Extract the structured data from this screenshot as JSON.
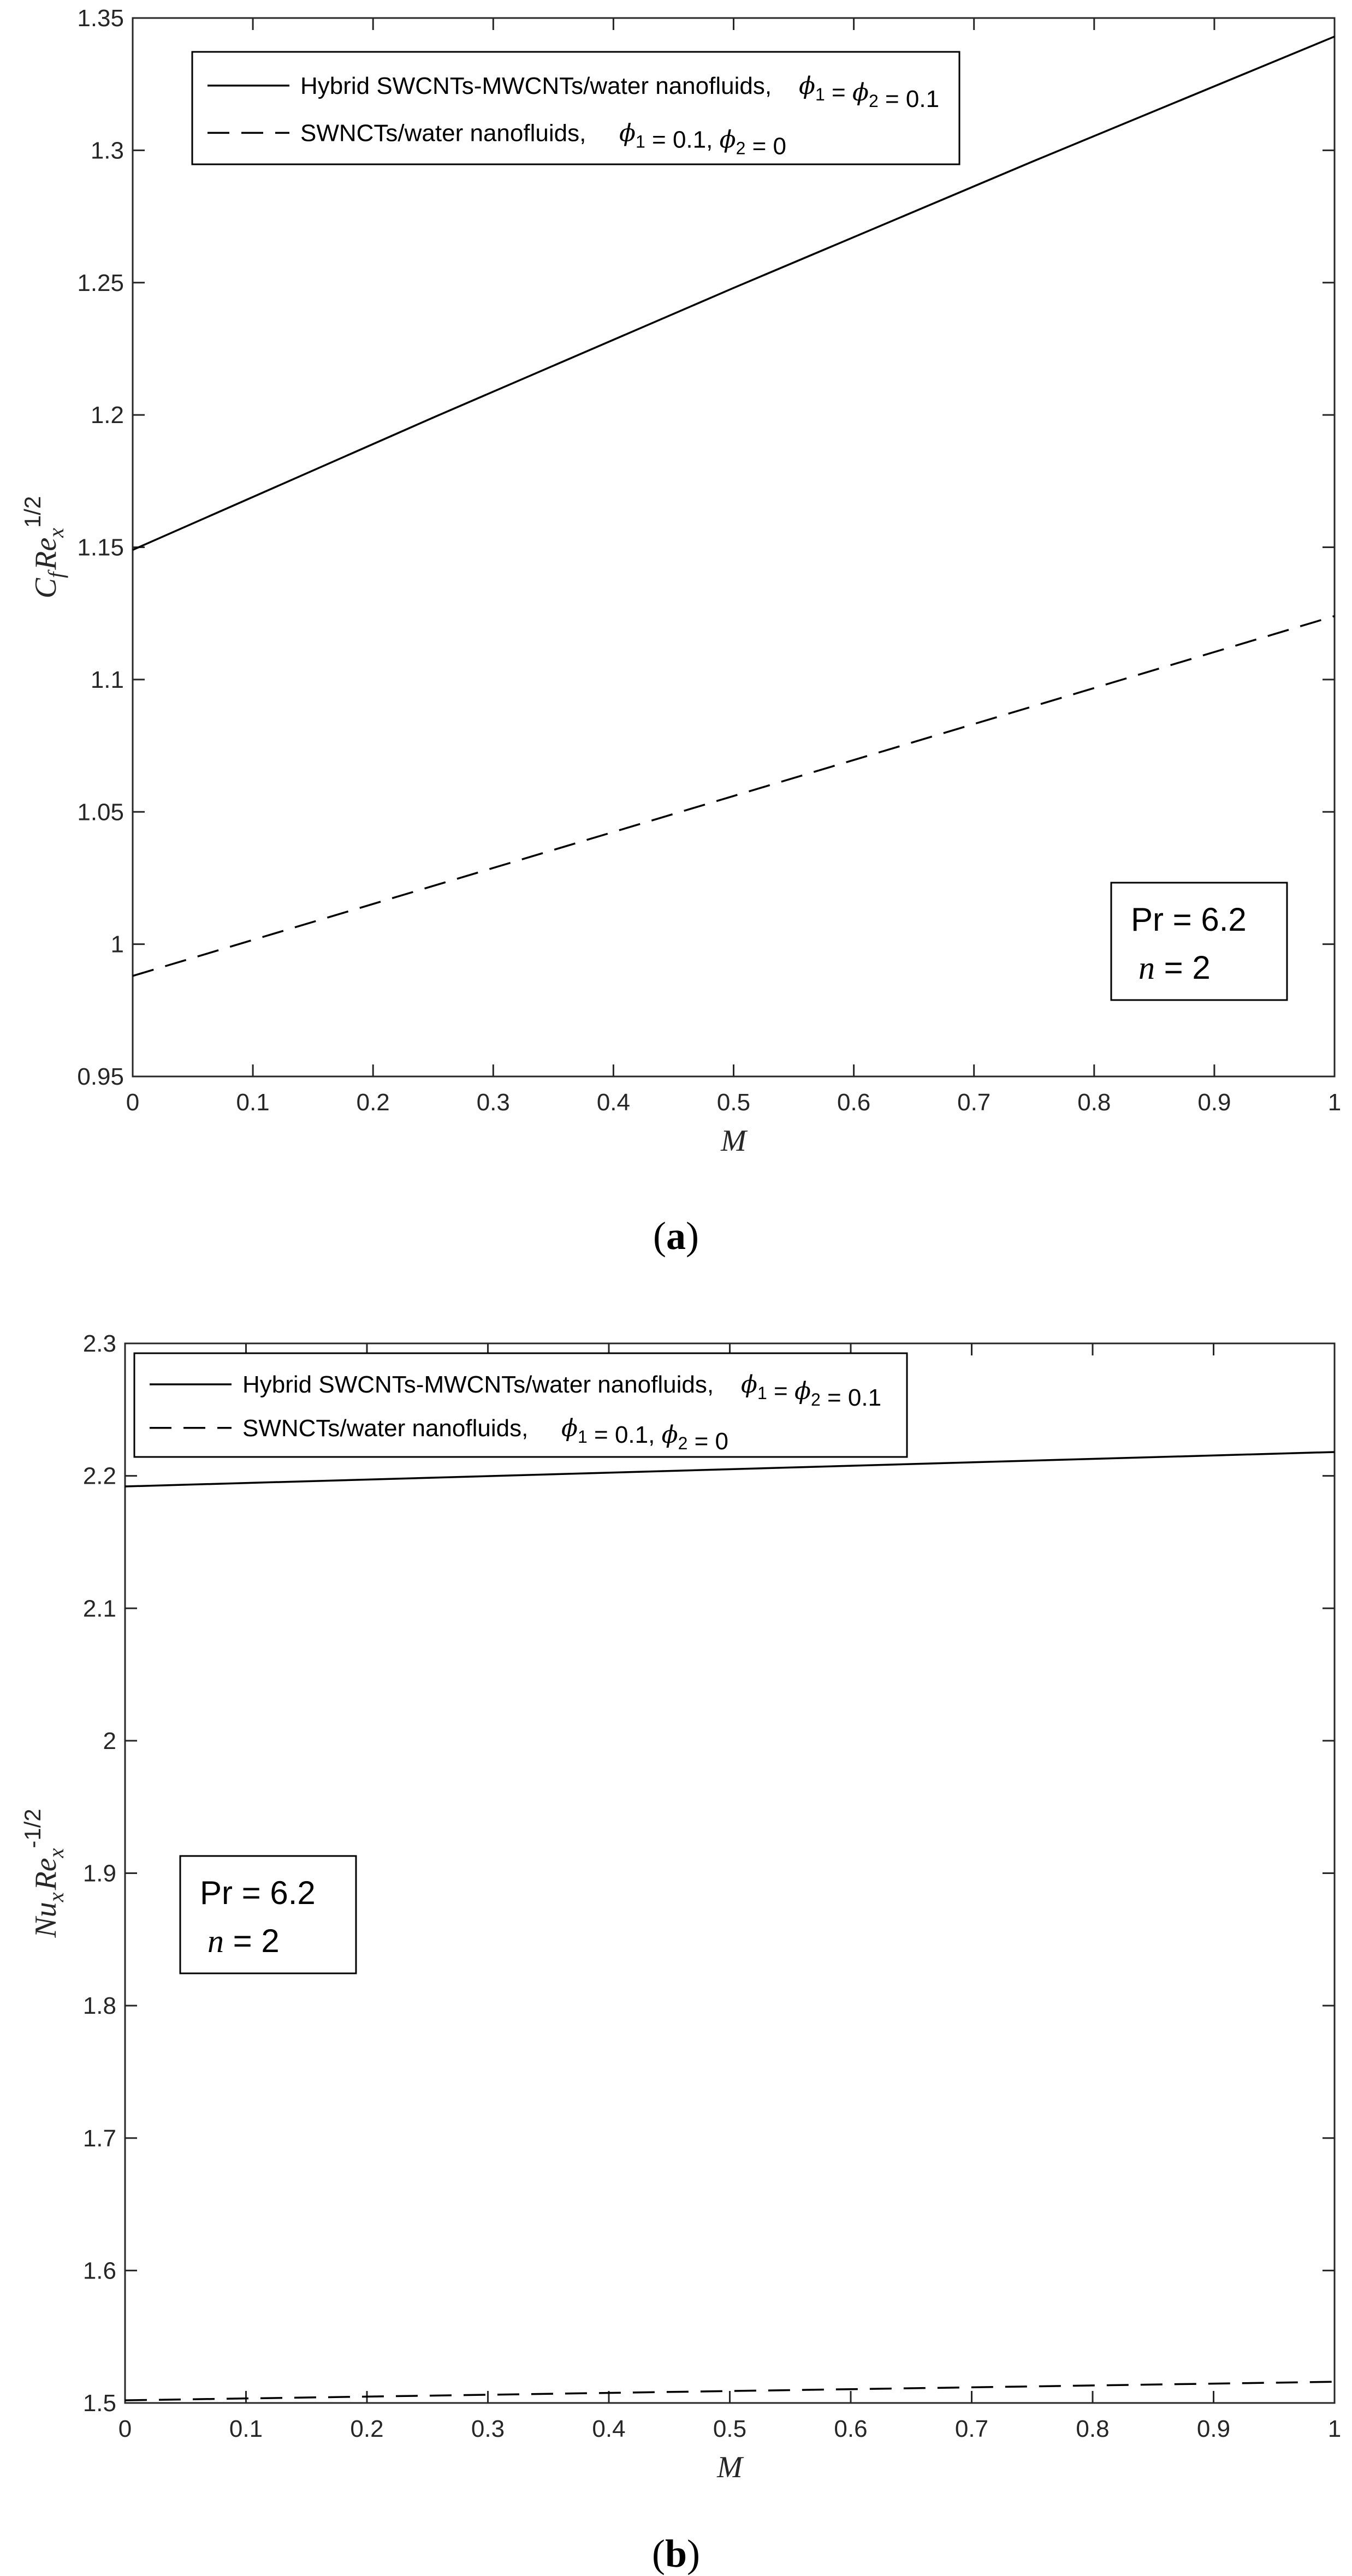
{
  "chart_data": [
    {
      "type": "line",
      "caption_letter": "a",
      "xlabel": "M",
      "ylabel_main": "C",
      "ylabel_sub1": "f",
      "ylabel_mid": "Re",
      "ylabel_sub2": "x",
      "ylabel_sup": "1/2",
      "xlim": [
        0,
        1
      ],
      "ylim": [
        0.95,
        1.35
      ],
      "xticks": [
        "0",
        "0.1",
        "0.2",
        "0.3",
        "0.4",
        "0.5",
        "0.6",
        "0.7",
        "0.8",
        "0.9",
        "1"
      ],
      "yticks": [
        "0.95",
        "1",
        "1.05",
        "1.1",
        "1.15",
        "1.2",
        "1.25",
        "1.3",
        "1.35"
      ],
      "legend_position": "top-left",
      "series": [
        {
          "name": "Hybrid SWCNTs-MWCNTs/water nanofluids,",
          "cond": "ϕ1 = ϕ2 = 0.1",
          "style": "solid",
          "x": [
            0,
            0.25,
            0.5,
            0.75,
            1
          ],
          "y": [
            1.149,
            1.199,
            1.248,
            1.296,
            1.343
          ]
        },
        {
          "name": "SWNCTs/water nanofluids,",
          "cond": "ϕ1 = 0.1, ϕ2 = 0",
          "style": "dashed",
          "x": [
            0,
            0.25,
            0.5,
            0.75,
            1
          ],
          "y": [
            0.988,
            1.022,
            1.056,
            1.09,
            1.124
          ]
        }
      ],
      "annotation": {
        "line1": "Pr = 6.2",
        "line2_var": "n",
        "line2_rest": " = 2"
      }
    },
    {
      "type": "line",
      "caption_letter": "b",
      "xlabel": "M",
      "ylabel_main": "Nu",
      "ylabel_sub1": "x",
      "ylabel_mid": "Re",
      "ylabel_sub2": "x",
      "ylabel_sup": "-1/2",
      "xlim": [
        0,
        1
      ],
      "ylim": [
        1.5,
        2.3
      ],
      "xticks": [
        "0",
        "0.1",
        "0.2",
        "0.3",
        "0.4",
        "0.5",
        "0.6",
        "0.7",
        "0.8",
        "0.9",
        "1"
      ],
      "yticks": [
        "1.5",
        "1.6",
        "1.7",
        "1.8",
        "1.9",
        "2",
        "2.1",
        "2.2",
        "2.3"
      ],
      "legend_position": "top-left",
      "series": [
        {
          "name": "Hybrid SWCNTs-MWCNTs/water nanofluids,",
          "cond": "ϕ1 = ϕ2 = 0.1",
          "style": "solid",
          "x": [
            0,
            0.5,
            1
          ],
          "y": [
            2.192,
            2.205,
            2.218
          ]
        },
        {
          "name": "SWNCTs/water nanofluids,",
          "cond": "ϕ1 = 0.1, ϕ2 = 0",
          "style": "dashed",
          "x": [
            0,
            0.5,
            1
          ],
          "y": [
            1.502,
            1.509,
            1.516
          ]
        }
      ],
      "annotation": {
        "line1": "Pr = 6.2",
        "line2_var": "n",
        "line2_rest": " = 2"
      }
    }
  ]
}
